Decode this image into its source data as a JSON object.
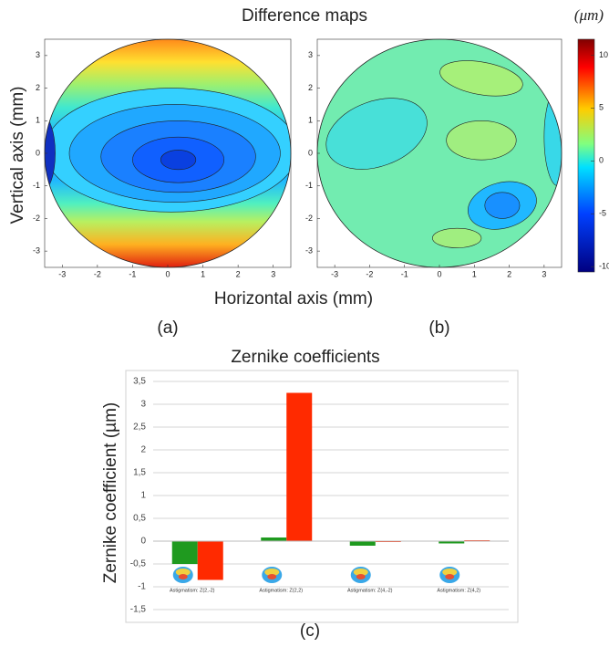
{
  "figure": {
    "title": "Difference maps",
    "xlabel": "Horizontal axis (mm)",
    "ylabel": "Vertical axis (mm)",
    "colorbar": {
      "label": "(μm)",
      "lim": [
        -10.5,
        11.5
      ],
      "ticks": [
        -10,
        -5,
        0,
        5,
        10
      ]
    }
  },
  "chart_data": [
    {
      "type": "contour",
      "label": "(a)",
      "xlim": [
        -3.5,
        3.5
      ],
      "ylim": [
        -3.5,
        3.5
      ],
      "xticks": [
        -3,
        -2,
        -1,
        0,
        1,
        2,
        3
      ],
      "yticks": [
        -3,
        -2,
        -1,
        0,
        1,
        2,
        3
      ]
    },
    {
      "type": "contour",
      "label": "(b)",
      "xlim": [
        -3.5,
        3.5
      ],
      "ylim": [
        -3.5,
        3.5
      ],
      "xticks": [
        -3,
        -2,
        -1,
        0,
        1,
        2,
        3
      ],
      "yticks": [
        -3,
        -2,
        -1,
        0,
        1,
        2,
        3
      ]
    },
    {
      "type": "bar",
      "title": "Zernike coefficients",
      "ylabel": "Zernike coefficient (µm)",
      "label": "(c)",
      "categories": [
        "Astigmatism: Z(2,-2)",
        "Astigmatism: Z(2,2)",
        "Astigmatism: Z(4,-2)",
        "Astigmatism: Z(4,2)"
      ],
      "series": [
        {
          "color": "#1f9a1f",
          "values": [
            -0.5,
            0.08,
            -0.1,
            -0.05
          ]
        },
        {
          "color": "#ff2a00",
          "values": [
            -0.85,
            3.25,
            -0.02,
            0.02
          ]
        }
      ],
      "ylim": [
        -1.5,
        3.5
      ],
      "yticks": [
        {
          "value": 3.5,
          "label": "3,5"
        },
        3,
        {
          "value": 2.5,
          "label": "2,5"
        },
        2,
        {
          "value": 1.5,
          "label": "1,5"
        },
        1,
        {
          "value": 0.5,
          "label": "0,5"
        },
        0,
        {
          "value": -0.5,
          "label": "-0,5"
        },
        -1,
        {
          "value": -1.5,
          "label": "-1,5"
        }
      ],
      "grid": true
    }
  ]
}
